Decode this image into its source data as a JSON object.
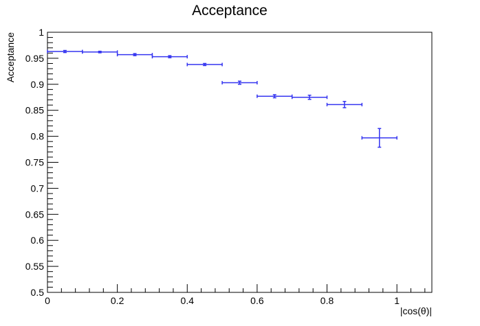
{
  "chart_data": {
    "type": "scatter",
    "title": "Acceptance",
    "xlabel": "|cos(θ)|",
    "ylabel": "Acceptance",
    "xlim": [
      0,
      1.1
    ],
    "ylim": [
      0.5,
      1.0
    ],
    "grid": false,
    "legend": "none",
    "x_ticks": [
      0,
      0.2,
      0.4,
      0.6,
      0.8,
      1
    ],
    "x_tick_labels": [
      "0",
      "0.2",
      "0.4",
      "0.6",
      "0.8",
      "1"
    ],
    "y_ticks": [
      0.5,
      0.55,
      0.6,
      0.65,
      0.7,
      0.75,
      0.8,
      0.85,
      0.9,
      0.95,
      1
    ],
    "y_tick_labels": [
      "0.5",
      "0.55",
      "0.6",
      "0.65",
      "0.7",
      "0.75",
      "0.8",
      "0.85",
      "0.9",
      "0.95",
      "1"
    ],
    "series": [
      {
        "color": "#3434f0",
        "points": [
          {
            "x": 0.05,
            "xerr": 0.05,
            "y": 0.963,
            "yerr": 0.002
          },
          {
            "x": 0.15,
            "xerr": 0.05,
            "y": 0.962,
            "yerr": 0.0015
          },
          {
            "x": 0.25,
            "xerr": 0.05,
            "y": 0.957,
            "yerr": 0.002
          },
          {
            "x": 0.35,
            "xerr": 0.05,
            "y": 0.953,
            "yerr": 0.002
          },
          {
            "x": 0.45,
            "xerr": 0.05,
            "y": 0.938,
            "yerr": 0.002
          },
          {
            "x": 0.55,
            "xerr": 0.05,
            "y": 0.903,
            "yerr": 0.003
          },
          {
            "x": 0.65,
            "xerr": 0.05,
            "y": 0.877,
            "yerr": 0.003
          },
          {
            "x": 0.75,
            "xerr": 0.05,
            "y": 0.875,
            "yerr": 0.004
          },
          {
            "x": 0.85,
            "xerr": 0.05,
            "y": 0.861,
            "yerr": 0.006
          },
          {
            "x": 0.95,
            "xerr": 0.05,
            "y": 0.797,
            "yerr": 0.018
          }
        ]
      }
    ]
  }
}
